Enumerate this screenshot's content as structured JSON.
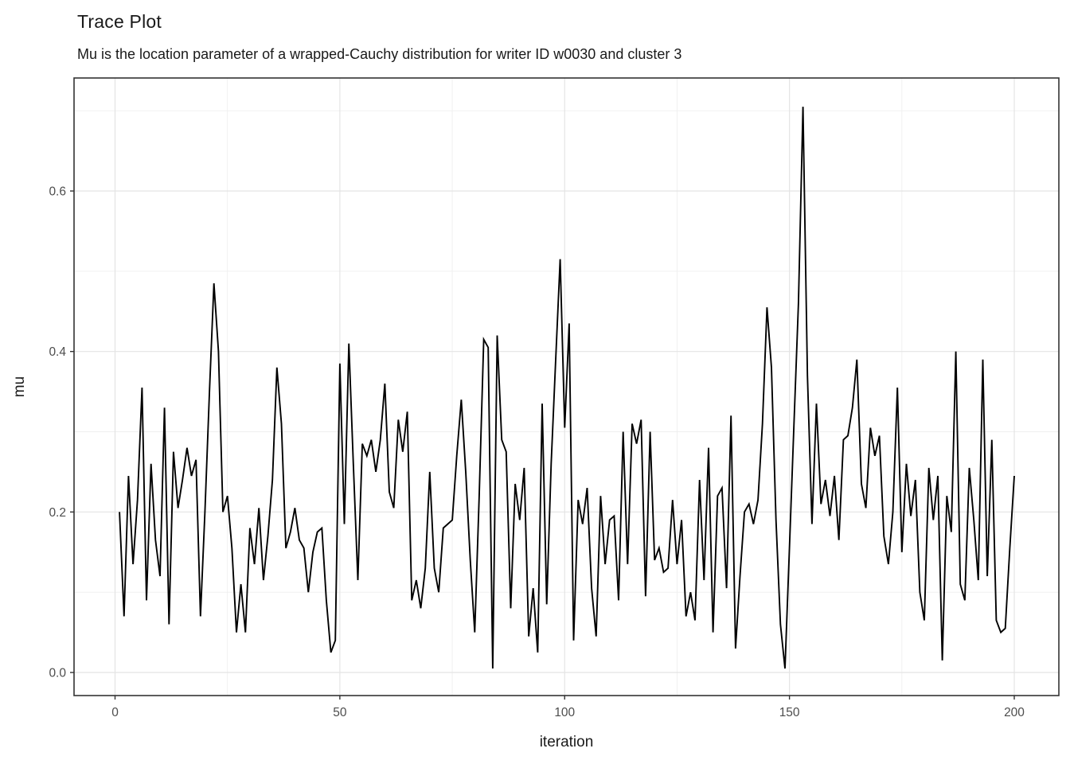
{
  "chart": {
    "title": "Trace Plot",
    "subtitle": "Mu is the location parameter of a wrapped-Cauchy distribution for writer ID w0030 and cluster 3",
    "xlabel": "iteration",
    "ylabel": "mu"
  },
  "chart_data": {
    "type": "line",
    "title": "Trace Plot",
    "subtitle": "Mu is the location parameter of a wrapped-Cauchy distribution for writer ID w0030 and cluster 3",
    "xlabel": "iteration",
    "ylabel": "mu",
    "x_start_iteration": 1,
    "values": [
      0.2,
      0.07,
      0.245,
      0.135,
      0.215,
      0.355,
      0.09,
      0.26,
      0.165,
      0.12,
      0.33,
      0.06,
      0.275,
      0.205,
      0.24,
      0.28,
      0.245,
      0.265,
      0.07,
      0.2,
      0.35,
      0.485,
      0.4,
      0.2,
      0.22,
      0.155,
      0.05,
      0.11,
      0.05,
      0.18,
      0.135,
      0.205,
      0.115,
      0.17,
      0.24,
      0.38,
      0.31,
      0.155,
      0.175,
      0.205,
      0.165,
      0.155,
      0.1,
      0.15,
      0.175,
      0.18,
      0.09,
      0.025,
      0.04,
      0.385,
      0.185,
      0.41,
      0.26,
      0.115,
      0.285,
      0.27,
      0.29,
      0.25,
      0.29,
      0.36,
      0.225,
      0.205,
      0.315,
      0.275,
      0.325,
      0.09,
      0.115,
      0.08,
      0.13,
      0.25,
      0.13,
      0.1,
      0.18,
      0.185,
      0.19,
      0.27,
      0.34,
      0.25,
      0.14,
      0.05,
      0.22,
      0.415,
      0.405,
      0.005,
      0.42,
      0.29,
      0.275,
      0.08,
      0.235,
      0.19,
      0.255,
      0.045,
      0.105,
      0.025,
      0.335,
      0.085,
      0.26,
      0.39,
      0.515,
      0.305,
      0.435,
      0.04,
      0.215,
      0.185,
      0.23,
      0.105,
      0.045,
      0.22,
      0.135,
      0.19,
      0.195,
      0.09,
      0.3,
      0.135,
      0.31,
      0.285,
      0.315,
      0.095,
      0.3,
      0.14,
      0.155,
      0.125,
      0.13,
      0.215,
      0.135,
      0.19,
      0.07,
      0.1,
      0.065,
      0.24,
      0.115,
      0.28,
      0.05,
      0.22,
      0.23,
      0.105,
      0.32,
      0.03,
      0.12,
      0.2,
      0.21,
      0.185,
      0.215,
      0.31,
      0.455,
      0.38,
      0.19,
      0.06,
      0.005,
      0.155,
      0.31,
      0.46,
      0.705,
      0.37,
      0.185,
      0.335,
      0.21,
      0.24,
      0.195,
      0.245,
      0.165,
      0.29,
      0.295,
      0.33,
      0.39,
      0.235,
      0.205,
      0.305,
      0.27,
      0.295,
      0.17,
      0.135,
      0.2,
      0.355,
      0.15,
      0.26,
      0.195,
      0.24,
      0.1,
      0.065,
      0.255,
      0.19,
      0.245,
      0.015,
      0.22,
      0.175,
      0.4,
      0.11,
      0.09,
      0.255,
      0.19,
      0.115,
      0.39,
      0.12,
      0.29,
      0.065,
      0.05,
      0.055,
      0.155,
      0.245
    ],
    "xlim": [
      -9.45,
      210.45
    ],
    "ylim": [
      -0.03,
      0.7408
    ],
    "x_ticks": {
      "values": [
        0,
        50,
        100,
        150,
        200
      ],
      "labels": [
        "0",
        "50",
        "100",
        "150",
        "200"
      ]
    },
    "y_ticks": {
      "values": [
        0.0,
        0.2,
        0.4,
        0.6
      ],
      "labels": [
        "0.0",
        "0.2",
        "0.4",
        "0.6"
      ]
    },
    "x_minor": [
      25,
      75,
      125,
      175
    ],
    "y_minor": [
      0.1,
      0.3,
      0.5,
      0.7
    ],
    "grid": true,
    "legend_position": "none"
  },
  "colors": {
    "line": "#000000",
    "panel_border": "#333333",
    "grid_major": "#e4e4e4",
    "grid_minor": "#efefef",
    "tick_mark": "#333333",
    "tick_label": "#4d4d4d",
    "axis_title": "#1a1a1a",
    "background": "#ffffff"
  }
}
